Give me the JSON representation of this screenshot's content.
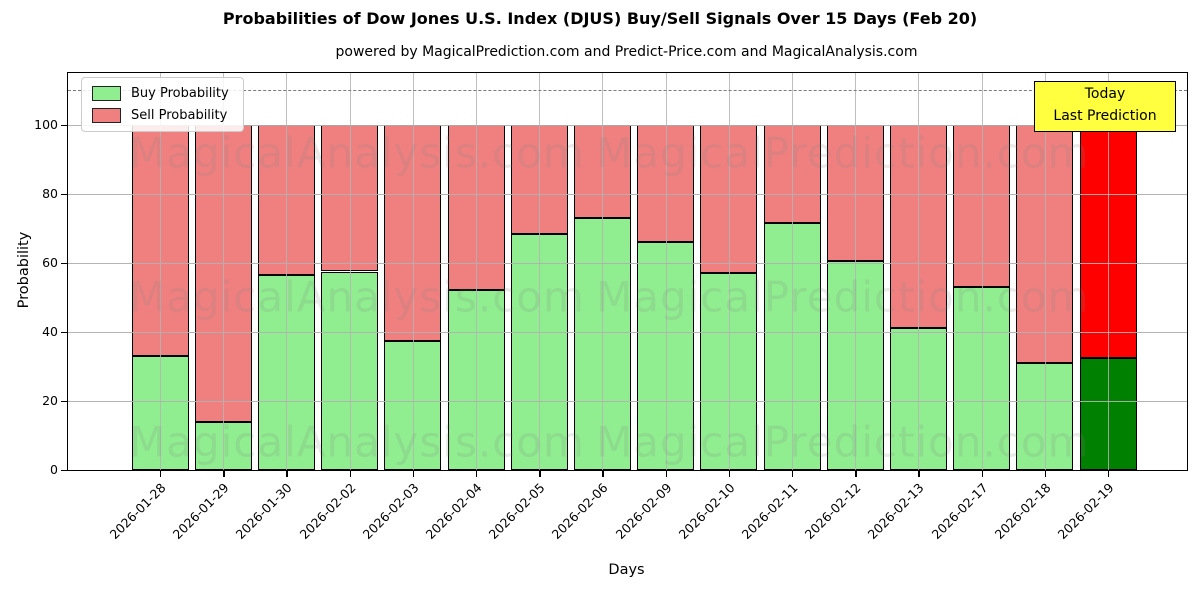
{
  "figure": {
    "title": "Probabilities of Dow Jones U.S. Index (DJUS) Buy/Sell Signals Over 15 Days (Feb 20)",
    "subtitle": "powered by MagicalPrediction.com and Predict-Price.com and MagicalAnalysis.com"
  },
  "chart_data": {
    "type": "bar",
    "stacked": true,
    "title": "Probabilities of Dow Jones U.S. Index (DJUS) Buy/Sell Signals Over 15 Days (Feb 20)",
    "subtitle": "powered by MagicalPrediction.com and Predict-Price.com and MagicalAnalysis.com",
    "xlabel": "Days",
    "ylabel": "Probability",
    "ylim": [
      0,
      115
    ],
    "yticks": [
      0,
      20,
      40,
      60,
      80,
      100
    ],
    "grid": true,
    "legend_position": "upper left",
    "categories": [
      "2026-01-28",
      "2026-01-29",
      "2026-01-30",
      "2026-02-02",
      "2026-02-03",
      "2026-02-04",
      "2026-02-05",
      "2026-02-06",
      "2026-02-09",
      "2026-02-10",
      "2026-02-11",
      "2026-02-12",
      "2026-02-13",
      "2026-02-17",
      "2026-02-18",
      "2026-02-19"
    ],
    "series": [
      {
        "name": "Buy Probability",
        "color": "#90EE90",
        "today_color": "#008000",
        "values": [
          33,
          14,
          56.5,
          57.5,
          37.5,
          52,
          68.5,
          73,
          66,
          57,
          71.5,
          60.5,
          41,
          53,
          31,
          32.5
        ]
      },
      {
        "name": "Sell Probability",
        "color": "#F08080",
        "today_color": "#FF0000",
        "values": [
          67,
          86,
          43.5,
          42.5,
          62.5,
          48,
          31.5,
          27,
          34,
          43,
          28.5,
          39.5,
          59,
          47,
          69,
          67.5
        ]
      }
    ],
    "bar_edge_color": "#000000",
    "grid_color": "#b0b0b0",
    "dashed_line_y": 110,
    "annotation": {
      "lines": [
        "Today",
        "Last Prediction"
      ],
      "bg": "#FFFF40",
      "border": "#000000"
    },
    "watermarks": [
      "MagicalAnalysis.com",
      "MagicalPrediction.com"
    ]
  }
}
